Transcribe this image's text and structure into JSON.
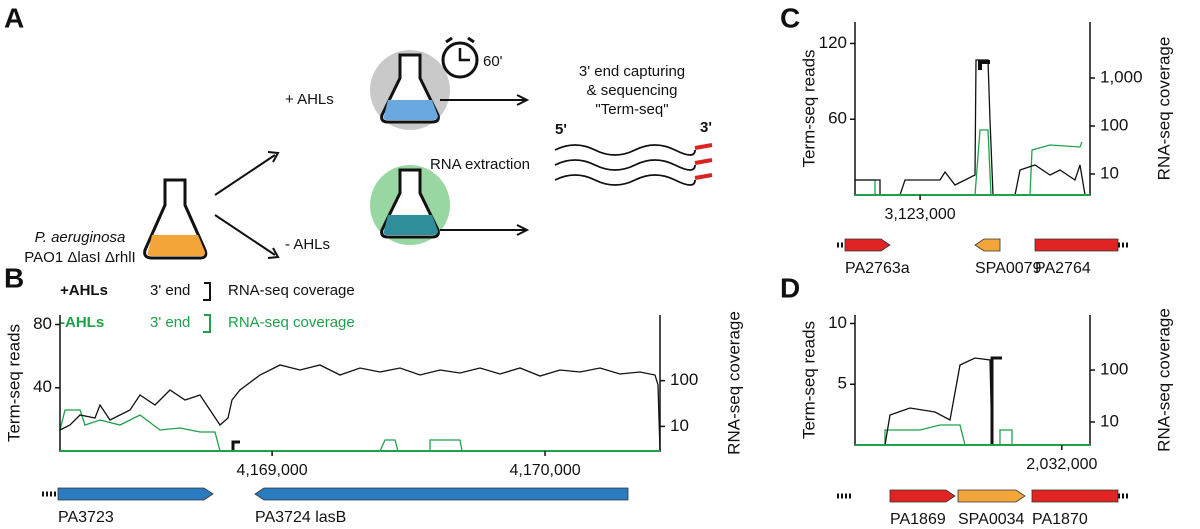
{
  "panel_a": {
    "label": "A",
    "strain": "P. aeruginosa",
    "genotype": "PAO1 ΔlasI ΔrhlI",
    "plus": "+ AHLs",
    "minus": "- AHLs",
    "time": "60'",
    "step1": "3' end capturing",
    "step2": "& sequencing",
    "step3": "\"Term-seq\"",
    "five": "5'",
    "three": "3'",
    "extraction": "RNA extraction"
  },
  "panels": [
    {
      "label": "B",
      "legend": [
        {
          "name": "+AHLs",
          "end": "3' end",
          "cov": "RNA-seq coverage",
          "color": "#111111"
        },
        {
          "name": "-AHLs",
          "end": "3' end",
          "cov": "RNA-seq coverage",
          "color": "#1fa04a"
        }
      ],
      "ylabel": "Term-seq reads",
      "y2label": "RNA-seq coverage",
      "ylim": [
        0,
        86
      ],
      "yticks": [
        40,
        80
      ],
      "y2lim": [
        2.9,
        2720
      ],
      "y2ticks": [
        10,
        100
      ],
      "xlim": [
        4168223,
        4170421
      ],
      "xticks": [
        {
          "value": 4169000,
          "label": "4,169,000"
        },
        {
          "value": 4170000,
          "label": "4,170,000"
        }
      ],
      "genes": [
        {
          "label": "PA3723",
          "color": "#2a7bbf"
        },
        {
          "label": "PA3724 lasB",
          "color": "#2a7bbf"
        }
      ]
    },
    {
      "label": "C",
      "ylabel": "Term-seq reads",
      "y2label": "RNA-seq coverage",
      "ylim": [
        0,
        137
      ],
      "yticks": [
        60,
        120
      ],
      "y2lim": [
        3.65,
        14700
      ],
      "y2ticks": [
        10,
        100,
        {
          "value": 1000,
          "label": "1,000"
        }
      ],
      "xlim": [
        3122723,
        3123723
      ],
      "xticks": [
        {
          "value": 3123000,
          "label": "3,123,000"
        }
      ],
      "genes": [
        {
          "label": "PA2763a",
          "color": "#e02424"
        },
        {
          "label": "SPA0079",
          "color": "#f4a53a"
        },
        {
          "label": "PA2764",
          "color": "#e02424"
        }
      ]
    },
    {
      "label": "D",
      "ylabel": "Term-seq reads",
      "y2label": "RNA-seq coverage",
      "ylim": [
        0,
        10.7
      ],
      "yticks": [
        5,
        10
      ],
      "y2lim": [
        3.6,
        1150
      ],
      "y2ticks": [
        10,
        100
      ],
      "xlim": [
        2031120,
        2032120
      ],
      "xticks": [
        {
          "value": 2032000,
          "label": "2,032,000"
        }
      ],
      "genes": [
        {
          "label": "PA1869",
          "color": "#e02424"
        },
        {
          "label": "SPA0034",
          "color": "#f4a53a"
        },
        {
          "label": "PA1870",
          "color": "#e02424"
        }
      ]
    }
  ]
}
